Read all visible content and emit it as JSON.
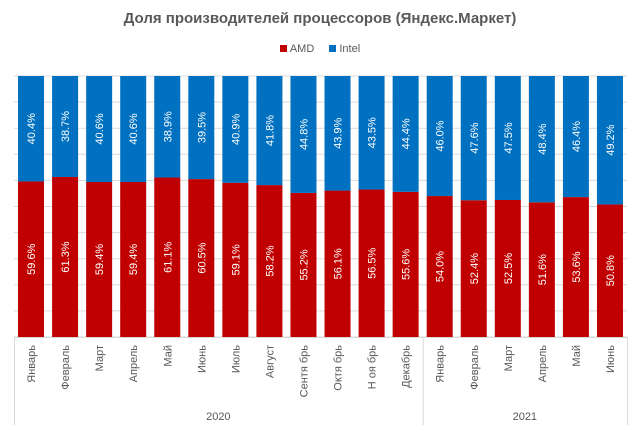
{
  "chart_data": {
    "type": "bar",
    "stacked": true,
    "title": "Доля производителей процессоров (Яндекс.Маркет)",
    "xlabel": "",
    "ylabel": "",
    "ylim": [
      0,
      100
    ],
    "grid": true,
    "legend_position": "top",
    "categories": [
      "Январь",
      "Февраль",
      "Март",
      "Апрель",
      "Май",
      "Июнь",
      "Июль",
      "Август",
      "Сентябрь",
      "Октябрь",
      "Ноябрь",
      "Декабрь",
      "Январь",
      "Февраль",
      "Март",
      "Апрель",
      "Май",
      "Июнь"
    ],
    "category_labels": [
      "Январь",
      "Февраль",
      "Март",
      "Апрель",
      "Май",
      "Июнь",
      "Июль",
      "Август",
      "Сентя брь",
      "Октя брь",
      "Н оя брь",
      "Декабрь",
      "Январь",
      "Февраль",
      "Март",
      "Апрель",
      "Май",
      "Июнь"
    ],
    "groups": [
      {
        "label": "2020",
        "count": 12
      },
      {
        "label": "2021",
        "count": 6
      }
    ],
    "series": [
      {
        "name": "AMD",
        "color": "#C00000",
        "values": [
          59.6,
          61.3,
          59.4,
          59.4,
          61.1,
          60.5,
          59.1,
          58.2,
          55.2,
          56.1,
          56.5,
          55.6,
          54.0,
          52.4,
          52.5,
          51.6,
          53.6,
          50.8
        ],
        "labels": [
          "59.6%",
          "61.3%",
          "59.4%",
          "59.4%",
          "61.1%",
          "60.5%",
          "59.1%",
          "58.2%",
          "55.2%",
          "56.1%",
          "56.5%",
          "55.6%",
          "54.0%",
          "52.4%",
          "52.5%",
          "51.6%",
          "53.6%",
          "50.8%"
        ]
      },
      {
        "name": "Intel",
        "color": "#0070C0",
        "values": [
          40.4,
          38.7,
          40.6,
          40.6,
          38.9,
          39.5,
          40.9,
          41.8,
          44.8,
          43.9,
          43.5,
          44.4,
          46.0,
          47.6,
          47.5,
          48.4,
          46.4,
          49.2
        ],
        "labels": [
          "40.4%",
          "38.7%",
          "40.6%",
          "40.6%",
          "38.9%",
          "39.5%",
          "40.9%",
          "41.8%",
          "44.8%",
          "43.9%",
          "43.5%",
          "44.4%",
          "46.0%",
          "47.6%",
          "47.5%",
          "48.4%",
          "46.4%",
          "49.2%"
        ]
      }
    ]
  }
}
